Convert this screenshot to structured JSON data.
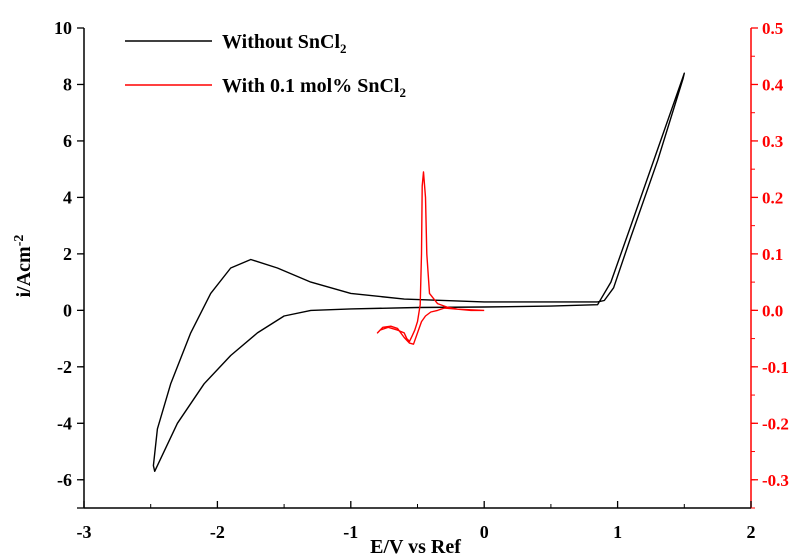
{
  "chart_data": {
    "type": "line",
    "xlabel": "E/V vs Ref",
    "ylabel": "i/Acm",
    "ylabel_sup": "-2",
    "xlim": [
      -3,
      2
    ],
    "ylim": [
      -7,
      10
    ],
    "y2lim": [
      -0.35,
      0.5
    ],
    "x_ticks": [
      "-3",
      "-2",
      "-1",
      "0",
      "1",
      "2"
    ],
    "x_tick_values": [
      -3,
      -2,
      -1,
      0,
      1,
      2
    ],
    "y_ticks": [
      "10",
      "8",
      "6",
      "4",
      "2",
      "0",
      "-2",
      "-4",
      "-6"
    ],
    "y_tick_values": [
      10,
      8,
      6,
      4,
      2,
      0,
      -2,
      -4,
      -6
    ],
    "y2_ticks": [
      "0.5",
      "0.4",
      "0.3",
      "0.2",
      "0.1",
      "0.0",
      "-0.1",
      "-0.2",
      "-0.3"
    ],
    "y2_tick_values": [
      0.5,
      0.4,
      0.3,
      0.2,
      0.1,
      0.0,
      -0.1,
      -0.2,
      -0.3
    ],
    "colors": {
      "series1": "#000000",
      "series2": "#ff0000",
      "right_axis": "#ff0000"
    },
    "legend": {
      "placement": "top-left",
      "entries": [
        {
          "text": "Without SnCl",
          "sub": "2"
        },
        {
          "text": "With 0.1 mol% SnCl",
          "sub": "2"
        }
      ]
    },
    "series": [
      {
        "axis": "left",
        "x": [
          0.85,
          0.0,
          -0.6,
          -1.0,
          -1.3,
          -1.55,
          -1.75,
          -1.9,
          -2.05,
          -2.2,
          -2.35,
          -2.45,
          -2.48,
          -2.47,
          -2.3,
          -2.1,
          -1.9,
          -1.7,
          -1.5,
          -1.3,
          -1.0,
          -0.5,
          0.0,
          0.5,
          0.85,
          0.95,
          1.1,
          1.3,
          1.5,
          1.49,
          1.3,
          1.1,
          0.97,
          0.9,
          0.85
        ],
        "y": [
          0.3,
          0.3,
          0.4,
          0.6,
          1.0,
          1.5,
          1.8,
          1.5,
          0.6,
          -0.8,
          -2.6,
          -4.2,
          -5.5,
          -5.7,
          -4.0,
          -2.6,
          -1.6,
          -0.8,
          -0.2,
          0.0,
          0.05,
          0.1,
          0.12,
          0.15,
          0.2,
          1.0,
          3.0,
          5.7,
          8.4,
          8.2,
          5.3,
          2.6,
          0.8,
          0.35,
          0.3
        ]
      },
      {
        "axis": "right",
        "x": [
          0.0,
          -0.1,
          -0.2,
          -0.28,
          -0.35,
          -0.41,
          -0.43,
          -0.44,
          -0.455,
          -0.465,
          -0.47,
          -0.48,
          -0.5,
          -0.52,
          -0.54,
          -0.56,
          -0.58,
          -0.6,
          -0.65,
          -0.72,
          -0.78,
          -0.8,
          -0.76,
          -0.7,
          -0.65,
          -0.6,
          -0.56,
          -0.53,
          -0.5,
          -0.47,
          -0.44,
          -0.4,
          -0.35,
          -0.3,
          -0.2,
          -0.1,
          0.0
        ],
        "y": [
          0.0,
          0.0,
          0.002,
          0.006,
          0.012,
          0.03,
          0.1,
          0.2,
          0.245,
          0.22,
          0.1,
          0.01,
          -0.02,
          -0.035,
          -0.045,
          -0.055,
          -0.05,
          -0.04,
          -0.035,
          -0.03,
          -0.035,
          -0.04,
          -0.03,
          -0.028,
          -0.032,
          -0.048,
          -0.058,
          -0.06,
          -0.04,
          -0.02,
          -0.01,
          -0.003,
          0.0,
          0.004,
          0.002,
          0.001,
          0.0
        ]
      }
    ]
  }
}
